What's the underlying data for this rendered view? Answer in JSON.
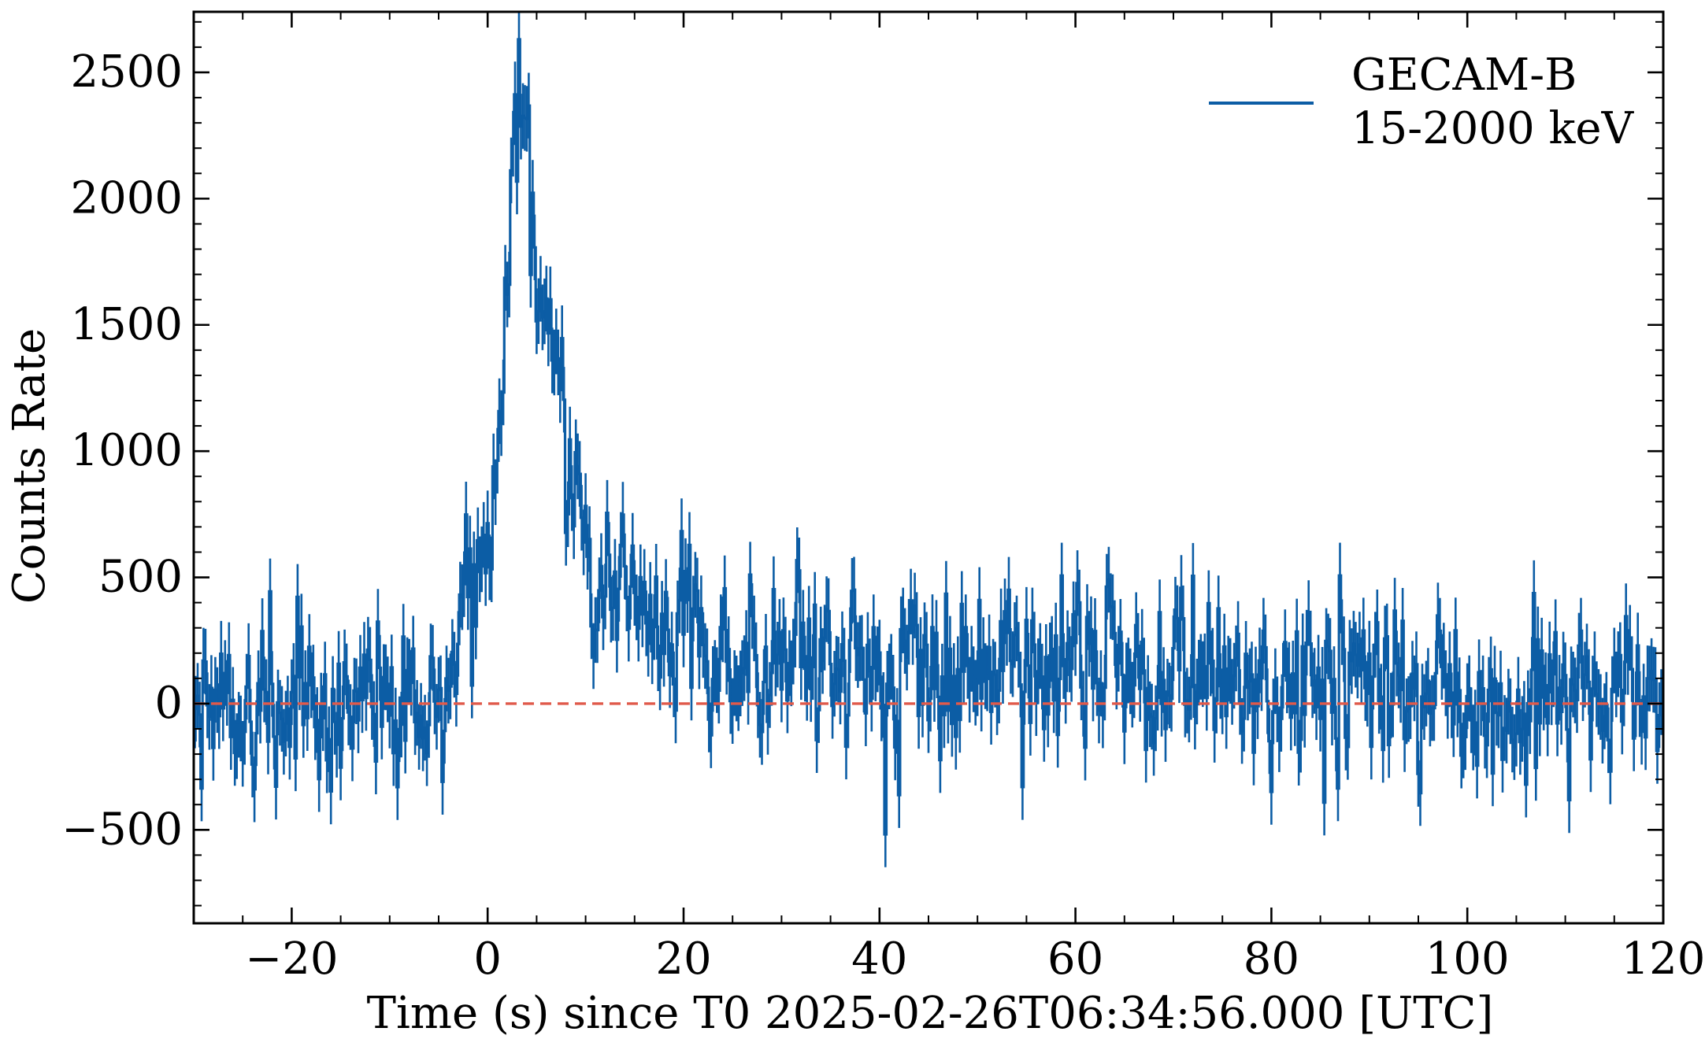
{
  "chart_data": {
    "type": "line",
    "title": "",
    "xlabel": "Time (s) since T0 2025-02-26T06:34:56.000 [UTC]",
    "ylabel": "Counts Rate",
    "xlim": [
      -30,
      120
    ],
    "ylim": [
      -870,
      2740
    ],
    "xticks": [
      -20,
      0,
      20,
      40,
      60,
      80,
      100,
      120
    ],
    "xtick_labels": [
      "−20",
      "0",
      "20",
      "40",
      "60",
      "80",
      "100",
      "120"
    ],
    "yticks": [
      -500,
      0,
      500,
      1000,
      1500,
      2000,
      2500
    ],
    "ytick_labels": [
      "−500",
      "0",
      "500",
      "1000",
      "1500",
      "2000",
      "2500"
    ],
    "grid": false,
    "legend_position": "top-right",
    "legend": {
      "line1": "GECAM-B",
      "line2": "15-2000 keV"
    },
    "baseline": {
      "y": 0,
      "color": "#e05a4b",
      "style": "dashed"
    },
    "series": [
      {
        "name": "GECAM-B 15-2000 keV",
        "color": "#0c5da5",
        "bin_width": 0.2,
        "error": 130,
        "envelope": [
          [
            -30,
            0
          ],
          [
            -5,
            0
          ],
          [
            -3,
            150
          ],
          [
            -1,
            450
          ],
          [
            0,
            700
          ],
          [
            1,
            1100
          ],
          [
            2,
            1650
          ],
          [
            3,
            2300
          ],
          [
            4,
            2250
          ],
          [
            5,
            1600
          ],
          [
            6,
            1450
          ],
          [
            7,
            1400
          ],
          [
            8,
            1000
          ],
          [
            9,
            850
          ],
          [
            10,
            600
          ],
          [
            12,
            450
          ],
          [
            14,
            500
          ],
          [
            16,
            350
          ],
          [
            19,
            350
          ],
          [
            20,
            550
          ],
          [
            22,
            150
          ],
          [
            30,
            120
          ],
          [
            50,
            120
          ],
          [
            64,
            180
          ],
          [
            80,
            60
          ],
          [
            100,
            20
          ],
          [
            120,
            0
          ]
        ],
        "noise_std": 210
      }
    ]
  }
}
